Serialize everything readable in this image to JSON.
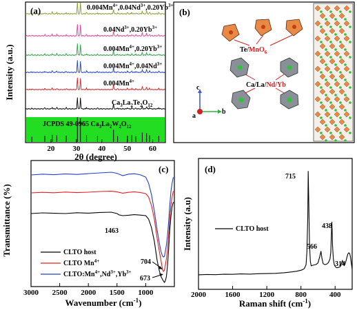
{
  "chart_data": [
    {
      "type": "line",
      "panel": "(a)",
      "xlabel": "2θ (degree)",
      "ylabel": "Intensity (a.u.)",
      "xlim": [
        10,
        65
      ],
      "xticks": [
        20,
        30,
        40,
        50,
        60
      ],
      "series": [
        {
          "name": "0.004Mn4+,0.04Nd3+,0.20Yb3+",
          "label_main": "0.004Mn",
          "label_sup": "4+",
          "label_rest": ",0.04Nd",
          "label_sup2": "3+",
          "label_rest2": ",0.20Yb",
          "label_sup3": "3+",
          "color": "#8a9a2a"
        },
        {
          "name": "0.04Nd3+,0.20Yb3+",
          "label_main": "0.04Nd",
          "label_sup": "3+",
          "label_rest": ",0.20Yb",
          "label_sup2": "3+",
          "label_rest2": "",
          "label_sup3": "",
          "color": "#e0409a"
        },
        {
          "name": "0.004Mn4+,0.20Yb3+",
          "label_main": "0.004Mn",
          "label_sup": "4+",
          "label_rest": ",0.20Yb",
          "label_sup2": "3+",
          "label_rest2": "",
          "label_sup3": "",
          "color": "#2aa040"
        },
        {
          "name": "0.004Mn4+,0.04Nd3+",
          "label_main": "0.004Mn",
          "label_sup": "4+",
          "label_rest": ",0.04Nd",
          "label_sup2": "3+",
          "label_rest2": "",
          "label_sup3": "",
          "color": "#2040c0"
        },
        {
          "name": "0.004Mn4+",
          "label_main": "0.004Mn",
          "label_sup": "4+",
          "label_rest": "",
          "label_sup2": "",
          "label_rest2": "",
          "label_sup3": "",
          "color": "#e02020"
        },
        {
          "name": "Ca3La2Te2O12",
          "label_main": "Ca",
          "label_sup": "",
          "label_rest": "La",
          "label_sup2": "",
          "label_rest2": "Te",
          "label_sup3": "",
          "color": "#000000"
        }
      ],
      "peaks_2theta": [
        12.5,
        17.6,
        20.5,
        22.3,
        26.0,
        30.4,
        31.6,
        34.0,
        38.3,
        44.6,
        46.2,
        50.1,
        51.8,
        53.4,
        55.9,
        57.6,
        58.8,
        62.4
      ],
      "peak_rel_intensity": [
        0.05,
        0.1,
        0.14,
        0.12,
        0.1,
        1.0,
        0.95,
        0.12,
        0.08,
        0.4,
        0.08,
        0.1,
        0.12,
        0.08,
        0.25,
        0.22,
        0.12,
        0.1
      ],
      "reference": {
        "label": "JCPDS 49-0965 Ca3La2W2O12",
        "color": "#22dd22"
      }
    },
    {
      "type": "structure",
      "panel": "(b)",
      "labels": [
        "Te/MnO6",
        "Ca/La/Nd/Yb"
      ],
      "axes": [
        "a",
        "b",
        "c"
      ]
    },
    {
      "type": "line",
      "panel": "(c)",
      "xlabel": "Wavenumber (cm-1)",
      "ylabel": "Transmittance (%)",
      "xlim": [
        3000,
        500
      ],
      "xticks": [
        3000,
        2500,
        2000,
        1500,
        1000
      ],
      "series": [
        {
          "name": "CLTO host",
          "color": "#000000",
          "x": [
            3000,
            2800,
            2600,
            2400,
            2200,
            2000,
            1800,
            1600,
            1500,
            1463,
            1400,
            1300,
            1200,
            1100,
            1000,
            950,
            900,
            850,
            800,
            760,
            730,
            704,
            690,
            673,
            660,
            640,
            620,
            600,
            580,
            560,
            540,
            520,
            500
          ],
          "y": [
            50,
            50.5,
            50.2,
            50,
            50.6,
            50.3,
            50.8,
            51,
            50,
            49,
            48.5,
            48.8,
            49.2,
            48.9,
            48.5,
            46,
            40,
            30,
            16,
            8,
            4,
            2,
            1,
            0,
            1,
            4,
            12,
            24,
            38,
            48,
            55,
            58,
            58
          ]
        },
        {
          "name": "CLTO Mn4+",
          "color": "#e02020",
          "x": [
            3000,
            2800,
            2600,
            2400,
            2200,
            2000,
            1800,
            1600,
            1500,
            1400,
            1300,
            1200,
            1100,
            1000,
            950,
            900,
            850,
            800,
            760,
            730,
            704,
            690,
            673,
            660,
            640,
            620,
            600,
            580,
            560,
            540,
            520,
            500
          ],
          "y": [
            65,
            65.4,
            65.1,
            65.6,
            65.2,
            65.5,
            66,
            66.2,
            65.7,
            64.8,
            65.4,
            65.8,
            65.3,
            64.5,
            62,
            56,
            46,
            32,
            22,
            15,
            9,
            8,
            9,
            12,
            17,
            24,
            34,
            46,
            56,
            62,
            66,
            66
          ]
        },
        {
          "name": "CLTO:Mn4+,Nd3+,Yb3+",
          "color": "#2040c0",
          "x": [
            3000,
            2800,
            2600,
            2400,
            2200,
            2000,
            1800,
            1600,
            1500,
            1400,
            1300,
            1200,
            1100,
            1000,
            950,
            900,
            850,
            800,
            760,
            730,
            704,
            690,
            673,
            660,
            640,
            620,
            600,
            580,
            560,
            540,
            520,
            500
          ],
          "y": [
            78,
            78.6,
            78.2,
            78.8,
            78.4,
            79,
            79.5,
            80,
            79.2,
            77.5,
            78.6,
            78.9,
            78.2,
            76.5,
            72,
            64,
            52,
            38,
            28,
            22,
            19,
            18.5,
            19,
            22,
            27,
            34,
            44,
            56,
            66,
            72,
            76,
            76
          ]
        }
      ],
      "annotations": [
        "1463",
        "704",
        "673"
      ]
    },
    {
      "type": "line",
      "panel": "(d)",
      "xlabel": "Raman shift (cm-1)",
      "ylabel": "Intensity (a.u)",
      "xlim": [
        2000,
        200
      ],
      "xticks": [
        2000,
        1600,
        1200,
        800,
        400
      ],
      "series": [
        {
          "name": "CLTO host",
          "color": "#000000",
          "x": [
            2000,
            1900,
            1800,
            1700,
            1600,
            1500,
            1400,
            1300,
            1200,
            1100,
            1000,
            950,
            900,
            850,
            800,
            780,
            760,
            740,
            730,
            720,
            715,
            710,
            700,
            690,
            680,
            660,
            640,
            620,
            600,
            580,
            566,
            555,
            540,
            520,
            500,
            480,
            460,
            450,
            445,
            440,
            438,
            435,
            430,
            420,
            410,
            400,
            390,
            380,
            360,
            340,
            330,
            320,
            314,
            305,
            295,
            285,
            270,
            260,
            250,
            240,
            230,
            220,
            210,
            200
          ],
          "y": [
            8,
            8.3,
            8.1,
            8.5,
            8.4,
            8.8,
            8.6,
            9,
            9.1,
            9.3,
            9.8,
            10.2,
            10.6,
            11.2,
            12,
            12.6,
            13.5,
            17,
            28,
            60,
            100,
            80,
            35,
            20,
            16,
            16.5,
            16.8,
            17.2,
            18.5,
            24,
            29,
            23,
            17.8,
            17,
            17.4,
            18.6,
            22,
            28,
            40,
            52,
            55,
            48,
            34,
            22,
            17,
            15.5,
            14.6,
            14.2,
            14.5,
            15.2,
            17,
            19.5,
            20.5,
            18,
            16.2,
            17.2,
            21,
            24,
            26.5,
            27.5,
            27,
            24,
            18,
            13
          ]
        }
      ],
      "annotations": [
        "715",
        "566",
        "438",
        "314"
      ]
    }
  ],
  "text": {
    "panel_a": "(a)",
    "panel_b": "(b)",
    "panel_c": "(c)",
    "panel_d": "(d)",
    "ylabel_a": "Intensity (a.u.)",
    "xlabel_a": "2θ (degree)",
    "ylabel_c": "Transmittance (%)",
    "xlabel_c_main": "Wavenumber (cm",
    "xlabel_c_sup": "-1",
    "xlabel_c_end": ")",
    "ylabel_d": "Intensity (a.u)",
    "xlabel_d_main": "Raman shift (cm",
    "xlabel_d_sup": "-1",
    "xlabel_d_end": ")",
    "jcpds_main": "JCPDS 49-0965 Ca",
    "jcpds_sub1": "3",
    "jcpds_mid": "La",
    "jcpds_sub2": "2",
    "jcpds_w": "W",
    "jcpds_sub3": "2",
    "jcpds_o": "O",
    "jcpds_sub4": "12",
    "host_label_ca": "Ca",
    "host_label_sub1": "3",
    "host_label_la": "La",
    "host_label_sub2": "2",
    "host_label_te": "Te",
    "host_label_sub3": "2",
    "host_label_o": "O",
    "host_label_sub4": "12",
    "b_te": "Te/",
    "b_mno": "MnO",
    "b_mno_sub": "6",
    "b_ca": "Ca/La/",
    "b_ndyb": "Nd/Yb",
    "b_axis_a": "a",
    "b_axis_b": "b",
    "b_axis_c": "c",
    "c_ann_1463": "1463",
    "c_ann_704": "704",
    "c_ann_673": "673",
    "d_ann_715": "715",
    "d_ann_566": "566",
    "d_ann_438": "438",
    "d_ann_314": "314",
    "c_leg_host": "CLTO host",
    "c_leg_mn": "CLTO Mn",
    "c_leg_mn_sup": "4+",
    "c_leg_all": "CLTO:Mn",
    "c_leg_all_sup1": "4+",
    "c_leg_all_mid1": ",Nd",
    "c_leg_all_sup2": "3+",
    "c_leg_all_mid2": ",Yb",
    "c_leg_all_sup3": "3+",
    "d_leg_host": "CLTO host"
  }
}
